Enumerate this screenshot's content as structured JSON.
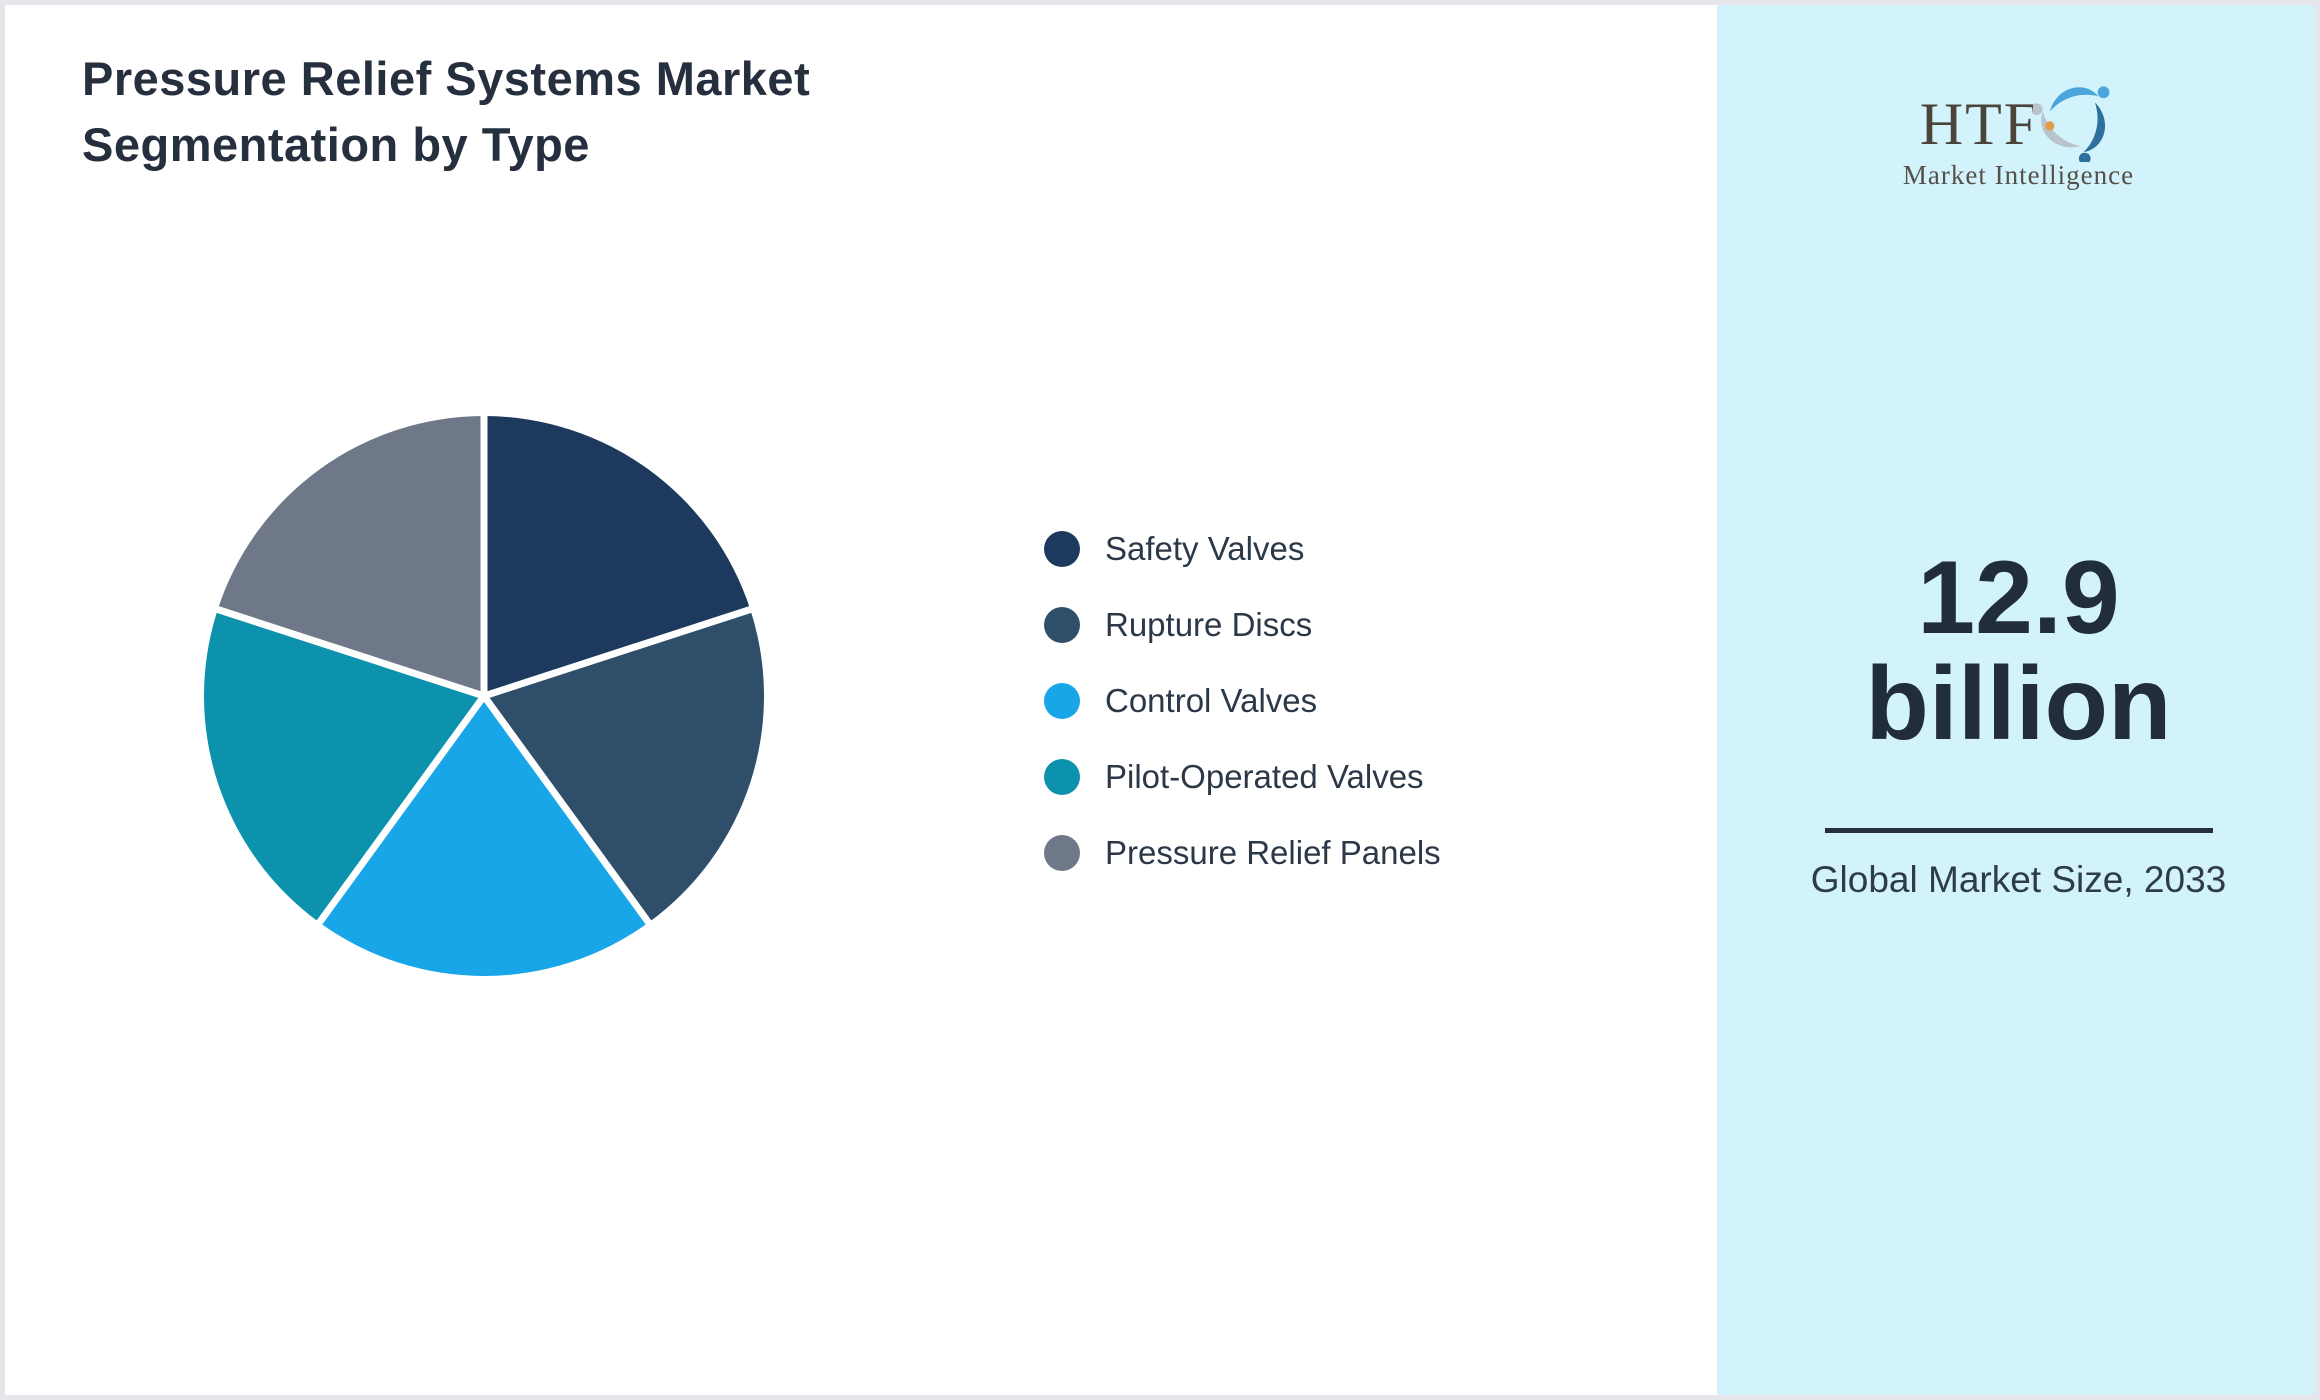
{
  "title": "Pressure Relief Systems Market Segmentation by Type",
  "logo": {
    "text": "HTF",
    "subtext": "Market Intelligence"
  },
  "panel": {
    "market_size_value": "12.9",
    "market_size_unit": "billion",
    "caption": "Global Market Size, 2033"
  },
  "chart_data": {
    "type": "pie",
    "title": "Pressure Relief Systems Market Segmentation by Type",
    "categories": [
      "Safety Valves",
      "Rupture Discs",
      "Control Valves",
      "Pilot-Operated Valves",
      "Pressure Relief Panels"
    ],
    "values": [
      20,
      20,
      20,
      20,
      20
    ],
    "unit": "percent",
    "colors": [
      "#1d3a5e",
      "#2f4e69",
      "#18a6e8",
      "#0d92ad",
      "#6e7889"
    ],
    "start_angle_deg": 0,
    "direction": "clockwise",
    "slice_separator_color": "#ffffff",
    "legend_position": "right",
    "data_labels": false
  },
  "colors": {
    "frame": "#e4e6ea",
    "panel_bg": "#d2f3fb",
    "heading": "#252f3d",
    "legend_text": "#2b3847",
    "number": "#212d3d",
    "divider": "#25303f",
    "caption": "#2e3b4b",
    "logo_text": "#4b443b",
    "logo_sub": "#56504a",
    "mark_blue": "#49a5dc",
    "mark_steel": "#2f6f9e",
    "mark_gray": "#b9c3cc",
    "mark_orange": "#e59a4a"
  }
}
